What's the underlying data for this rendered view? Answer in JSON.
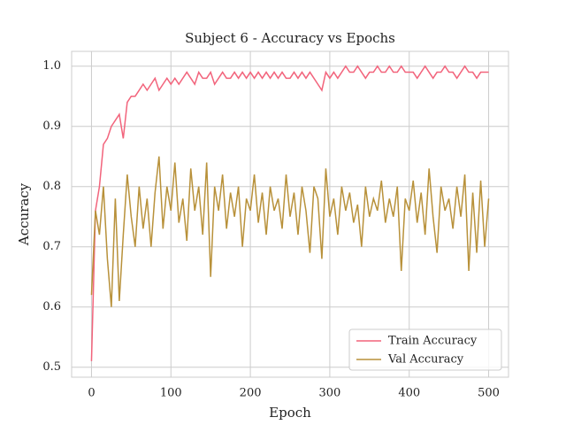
{
  "chart_data": {
    "type": "line",
    "title": "Subject 6 - Accuracy vs Epochs",
    "xlabel": "Epoch",
    "ylabel": "Accuracy",
    "x": [
      0,
      5,
      10,
      15,
      20,
      25,
      30,
      35,
      40,
      45,
      50,
      55,
      60,
      65,
      70,
      75,
      80,
      85,
      90,
      95,
      100,
      105,
      110,
      115,
      120,
      125,
      130,
      135,
      140,
      145,
      150,
      155,
      160,
      165,
      170,
      175,
      180,
      185,
      190,
      195,
      200,
      205,
      210,
      215,
      220,
      225,
      230,
      235,
      240,
      245,
      250,
      255,
      260,
      265,
      270,
      275,
      280,
      285,
      290,
      295,
      300,
      305,
      310,
      315,
      320,
      325,
      330,
      335,
      340,
      345,
      350,
      355,
      360,
      365,
      370,
      375,
      380,
      385,
      390,
      395,
      400,
      405,
      410,
      415,
      420,
      425,
      430,
      435,
      440,
      445,
      450,
      455,
      460,
      465,
      470,
      475,
      480,
      485,
      490,
      495,
      500
    ],
    "series": [
      {
        "name": "Train Accuracy",
        "color": "#f2647c",
        "values": [
          0.51,
          0.76,
          0.8,
          0.87,
          0.88,
          0.9,
          0.91,
          0.92,
          0.88,
          0.94,
          0.95,
          0.95,
          0.96,
          0.97,
          0.96,
          0.97,
          0.98,
          0.96,
          0.97,
          0.98,
          0.97,
          0.98,
          0.97,
          0.98,
          0.99,
          0.98,
          0.97,
          0.99,
          0.98,
          0.98,
          0.99,
          0.97,
          0.98,
          0.99,
          0.98,
          0.98,
          0.99,
          0.98,
          0.99,
          0.98,
          0.99,
          0.98,
          0.99,
          0.98,
          0.99,
          0.98,
          0.99,
          0.98,
          0.99,
          0.98,
          0.98,
          0.99,
          0.98,
          0.99,
          0.98,
          0.99,
          0.98,
          0.97,
          0.96,
          0.99,
          0.98,
          0.99,
          0.98,
          0.99,
          1.0,
          0.99,
          0.99,
          1.0,
          0.99,
          0.98,
          0.99,
          0.99,
          1.0,
          0.99,
          0.99,
          1.0,
          0.99,
          0.99,
          1.0,
          0.99,
          0.99,
          0.99,
          0.98,
          0.99,
          1.0,
          0.99,
          0.98,
          0.99,
          0.99,
          1.0,
          0.99,
          0.99,
          0.98,
          0.99,
          1.0,
          0.99,
          0.99,
          0.98,
          0.99,
          0.99,
          0.99
        ]
      },
      {
        "name": "Val Accuracy",
        "color": "#b8913a",
        "values": [
          0.62,
          0.76,
          0.72,
          0.8,
          0.68,
          0.6,
          0.78,
          0.61,
          0.72,
          0.82,
          0.75,
          0.7,
          0.8,
          0.73,
          0.78,
          0.7,
          0.79,
          0.85,
          0.73,
          0.8,
          0.76,
          0.84,
          0.74,
          0.78,
          0.71,
          0.83,
          0.76,
          0.8,
          0.72,
          0.84,
          0.65,
          0.8,
          0.76,
          0.82,
          0.73,
          0.79,
          0.75,
          0.8,
          0.7,
          0.78,
          0.76,
          0.82,
          0.74,
          0.79,
          0.72,
          0.8,
          0.76,
          0.78,
          0.73,
          0.82,
          0.75,
          0.79,
          0.72,
          0.8,
          0.76,
          0.69,
          0.8,
          0.78,
          0.68,
          0.83,
          0.75,
          0.78,
          0.72,
          0.8,
          0.76,
          0.79,
          0.74,
          0.77,
          0.7,
          0.8,
          0.75,
          0.78,
          0.76,
          0.81,
          0.74,
          0.78,
          0.75,
          0.8,
          0.66,
          0.78,
          0.76,
          0.81,
          0.74,
          0.79,
          0.72,
          0.83,
          0.75,
          0.69,
          0.8,
          0.76,
          0.78,
          0.73,
          0.8,
          0.75,
          0.82,
          0.66,
          0.79,
          0.69,
          0.81,
          0.7,
          0.78
        ]
      }
    ],
    "xlim": [
      -25,
      525
    ],
    "ylim": [
      0.4834,
      1.0246
    ],
    "xticks": [
      0,
      100,
      200,
      300,
      400,
      500
    ],
    "yticks": [
      0.5,
      0.6,
      0.7,
      0.8,
      0.9,
      {
        "value": 1,
        "label": "1.0"
      }
    ],
    "grid": true,
    "legend": "lower right"
  }
}
